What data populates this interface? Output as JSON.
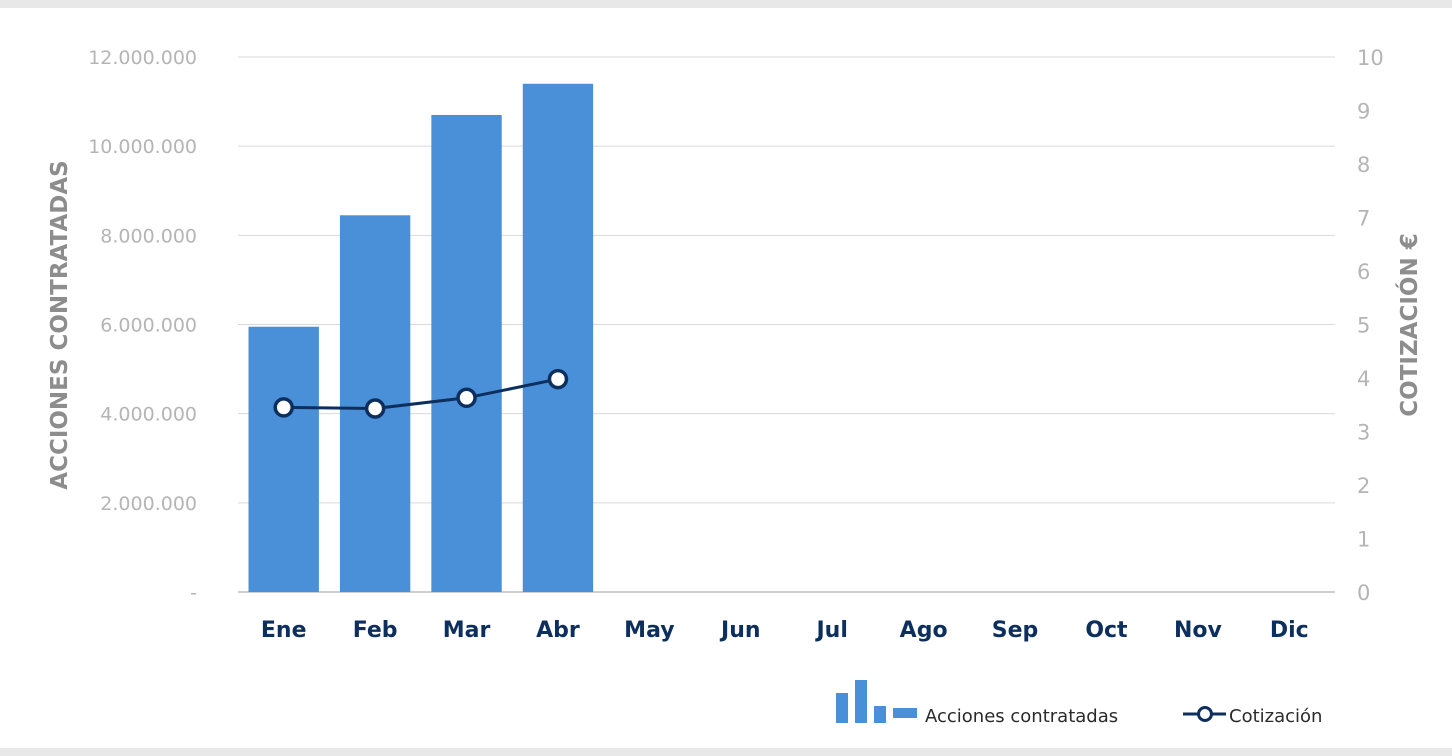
{
  "chart_data": {
    "type": "bar",
    "categories": [
      "Ene",
      "Feb",
      "Mar",
      "Abr",
      "May",
      "Jun",
      "Jul",
      "Ago",
      "Sep",
      "Oct",
      "Nov",
      "Dic"
    ],
    "series": [
      {
        "name": "Acciones contratadas",
        "type": "bar",
        "axis": "left",
        "color": "#4a90d9",
        "values": [
          5950000,
          8450000,
          10700000,
          11400000,
          null,
          null,
          null,
          null,
          null,
          null,
          null,
          null
        ]
      },
      {
        "name": "Cotización",
        "type": "line",
        "axis": "right",
        "color": "#0d2f5e",
        "values": [
          3.45,
          3.43,
          3.63,
          3.98,
          null,
          null,
          null,
          null,
          null,
          null,
          null,
          null
        ]
      }
    ],
    "ylabel": "ACCIONES CONTRATADAS",
    "y2label": "COTIZACIÓN €",
    "ylim": [
      0,
      12000000
    ],
    "y2lim": [
      0,
      10
    ],
    "y_ticks": [
      0,
      2000000,
      4000000,
      6000000,
      8000000,
      10000000,
      12000000
    ],
    "y_tick_labels": [
      "-",
      "2.000.000",
      "4.000.000",
      "6.000.000",
      "8.000.000",
      "10.000.000",
      "12.000.000"
    ],
    "y2_ticks": [
      0,
      1,
      2,
      3,
      4,
      5,
      6,
      7,
      8,
      9,
      10
    ],
    "y2_tick_labels": [
      "0",
      "1",
      "2",
      "3",
      "4",
      "5",
      "6",
      "7",
      "8",
      "9",
      "10"
    ],
    "grid": true,
    "legend": "bottom-right"
  }
}
